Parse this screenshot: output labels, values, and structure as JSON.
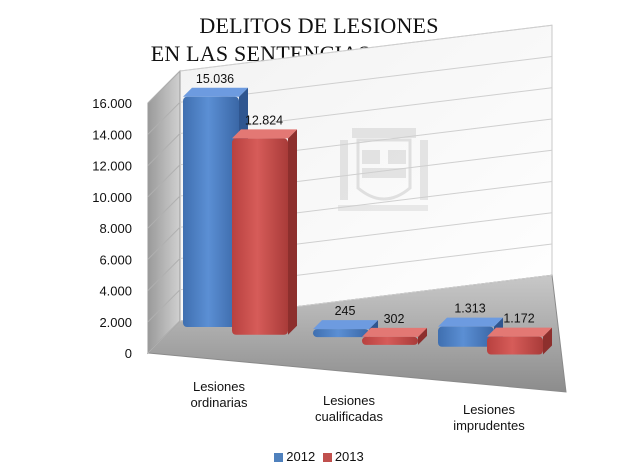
{
  "title": {
    "line1": "DELITOS DE LESIONES",
    "line2": "EN LAS SENTENCIAS DICTADAS"
  },
  "chart_data": {
    "type": "bar",
    "categories": [
      "Lesiones ordinarias",
      "Lesiones cualificadas",
      "Lesiones imprudentes"
    ],
    "category_lines": [
      [
        "Lesiones",
        "ordinarias"
      ],
      [
        "Lesiones",
        "cualificadas"
      ],
      [
        "Lesiones",
        "imprudentes"
      ]
    ],
    "series": [
      {
        "name": "2012",
        "values": [
          15036,
          245,
          1313
        ],
        "labels": [
          "15.036",
          "245",
          "1.313"
        ],
        "color": "#4F81BD"
      },
      {
        "name": "2013",
        "values": [
          12824,
          302,
          1172
        ],
        "labels": [
          "12.824",
          "302",
          "1.172"
        ],
        "color": "#C0504D"
      }
    ],
    "y_ticks": [
      "0",
      "2.000",
      "4.000",
      "6.000",
      "8.000",
      "10.000",
      "12.000",
      "14.000",
      "16.000"
    ],
    "ylim": [
      0,
      16000
    ],
    "grid": true,
    "style": "3d-clustered-column",
    "legend_position": "bottom"
  },
  "legend": {
    "items": [
      {
        "label": "2012",
        "color": "#4F81BD"
      },
      {
        "label": "2013",
        "color": "#C0504D"
      }
    ]
  }
}
